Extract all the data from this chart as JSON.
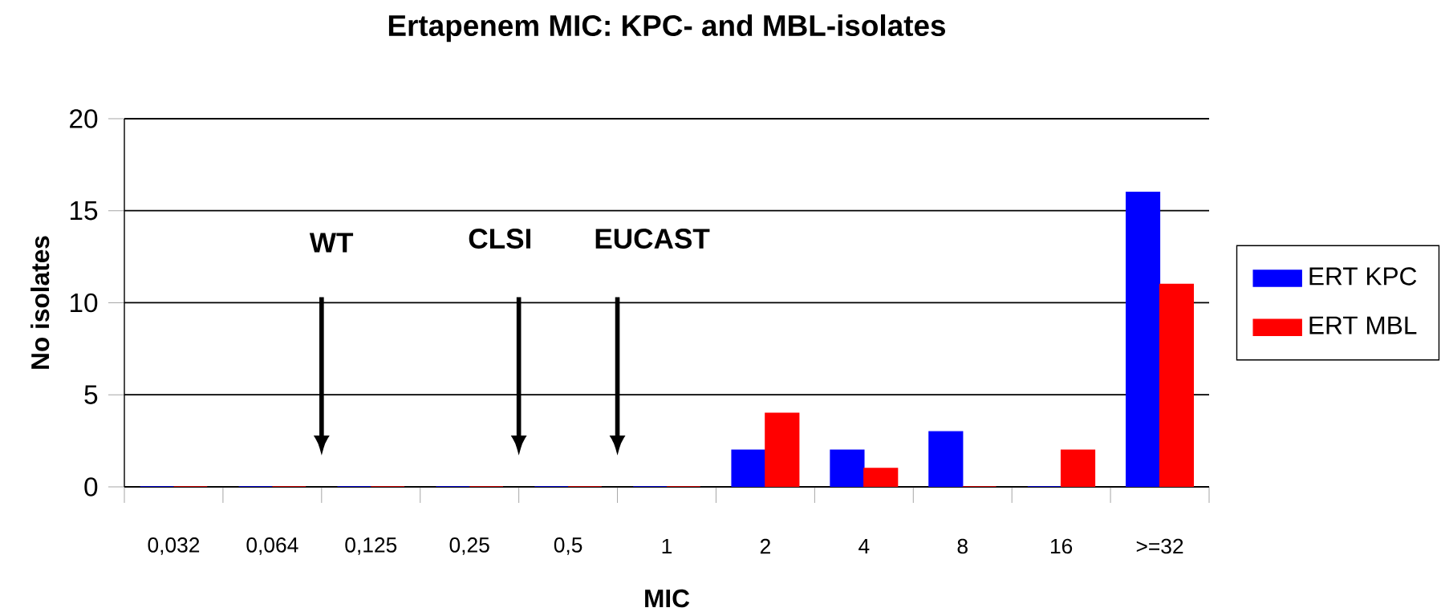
{
  "chart_data": {
    "type": "bar",
    "title": "Ertapenem MIC: KPC- and MBL-isolates",
    "xlabel": "MIC",
    "ylabel": "No isolates",
    "categories": [
      "0,032",
      "0,064",
      "0,125",
      "0,25",
      "0,5",
      "1",
      "2",
      "4",
      "8",
      "16",
      ">=32"
    ],
    "series": [
      {
        "name": "ERT KPC",
        "color": "#0000ff",
        "values": [
          0,
          0,
          0,
          0,
          0,
          0,
          2,
          2,
          3,
          0,
          16
        ]
      },
      {
        "name": "ERT MBL",
        "color": "#ff0000",
        "values": [
          0,
          0,
          0,
          0,
          0,
          0,
          4,
          1,
          0,
          2,
          11
        ]
      }
    ],
    "ylim": [
      0,
      20
    ],
    "yticks": [
      0,
      5,
      10,
      15,
      20
    ],
    "grid": "y",
    "legend": "right",
    "annotations": [
      "WT",
      "CLSI",
      "EUCAST"
    ]
  }
}
